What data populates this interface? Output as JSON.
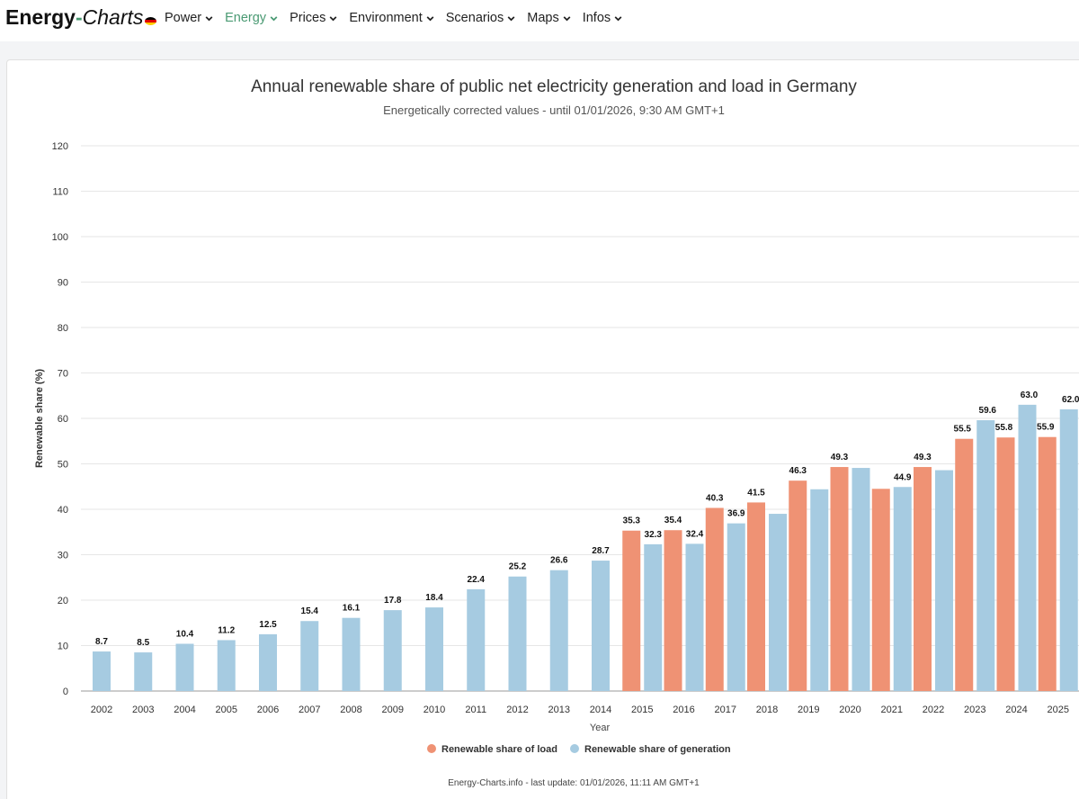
{
  "header": {
    "brand_part1": "Energy",
    "brand_part2": "-",
    "brand_part3": "Charts",
    "nav": [
      {
        "label": "Power",
        "active": false
      },
      {
        "label": "Energy",
        "active": true
      },
      {
        "label": "Prices",
        "active": false
      },
      {
        "label": "Environment",
        "active": false
      },
      {
        "label": "Scenarios",
        "active": false
      },
      {
        "label": "Maps",
        "active": false
      },
      {
        "label": "Infos",
        "active": false
      }
    ]
  },
  "colors": {
    "load": "#ef9274",
    "generation": "#a6cbe1",
    "accent": "#4a9a73"
  },
  "icons": [
    "germany-flag-icon",
    "chevron-down-icon"
  ],
  "credit": "Energy-Charts.info - last update: 01/01/2026, 11:11 AM GMT+1",
  "chart_data": {
    "type": "bar",
    "title": "Annual renewable share of public net electricity generation and load in Germany",
    "subtitle": "Energetically corrected values - until 01/01/2026, 9:30 AM GMT+1",
    "xlabel": "Year",
    "ylabel": "Renewable share (%)",
    "ylim": [
      0,
      120
    ],
    "yticks": [
      0,
      10,
      20,
      30,
      40,
      50,
      60,
      70,
      80,
      90,
      100,
      110,
      120
    ],
    "grid": true,
    "legend_position": "bottom-center",
    "categories": [
      "2002",
      "2003",
      "2004",
      "2005",
      "2006",
      "2007",
      "2008",
      "2009",
      "2010",
      "2011",
      "2012",
      "2013",
      "2014",
      "2015",
      "2016",
      "2017",
      "2018",
      "2019",
      "2020",
      "2021",
      "2022",
      "2023",
      "2024",
      "2025"
    ],
    "series": [
      {
        "name": "Renewable share of load",
        "values": [
          null,
          null,
          null,
          null,
          null,
          null,
          null,
          null,
          null,
          null,
          null,
          null,
          null,
          35.3,
          35.4,
          40.3,
          41.5,
          46.3,
          49.3,
          44.5,
          49.3,
          55.5,
          55.8,
          55.9
        ],
        "labels": [
          "",
          "",
          "",
          "",
          "",
          "",
          "",
          "",
          "",
          "",
          "",
          "",
          "",
          "35.3",
          "35.4",
          "40.3",
          "41.5",
          "46.3",
          "49.3",
          "",
          "49.3",
          "55.5",
          "55.8",
          "55.9"
        ]
      },
      {
        "name": "Renewable share of generation",
        "values": [
          8.7,
          8.5,
          10.4,
          11.2,
          12.5,
          15.4,
          16.1,
          17.8,
          18.4,
          22.4,
          25.2,
          26.6,
          28.7,
          32.3,
          32.4,
          36.9,
          39.0,
          44.4,
          49.1,
          44.9,
          48.6,
          59.6,
          63.0,
          62.0
        ],
        "labels": [
          "8.7",
          "8.5",
          "10.4",
          "11.2",
          "12.5",
          "15.4",
          "16.1",
          "17.8",
          "18.4",
          "22.4",
          "25.2",
          "26.6",
          "28.7",
          "32.3",
          "32.4",
          "36.9",
          "",
          "",
          "",
          "44.9",
          "",
          "59.6",
          "63.0",
          "62.0"
        ]
      }
    ]
  }
}
